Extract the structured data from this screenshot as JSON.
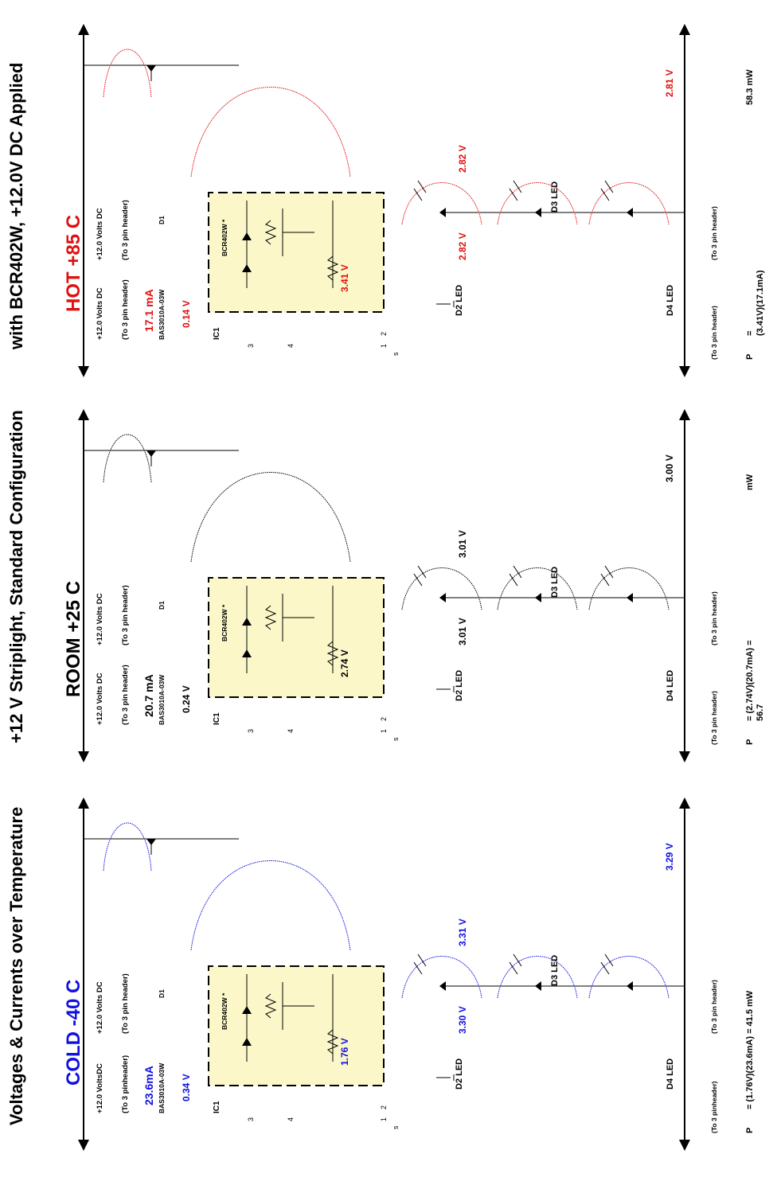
{
  "title": {
    "left": "Voltages & Currents over Temperature",
    "mid": "+12 V Striplight, Standard Configuration",
    "right": "with BCR402W, +12.0V DC Applied"
  },
  "colors": {
    "cold": "#1010e0",
    "room": "#000000",
    "hot": "#e01010",
    "ic_fill": "#fbf7c8"
  },
  "panels": [
    {
      "id": "cold",
      "temp_label": "COLD -40 C",
      "supply_a": "+12.0 VoltsDC",
      "header_a": "(To 3 pinheader)",
      "supply_b": "+12.0 Volts DC",
      "header_b": "(To 3 pin header)",
      "current": "23.6mA",
      "diode_part": "BAS3010A-03W",
      "diode_ref": "D1",
      "diode_v": "0.34 V",
      "ic_ref": "IC1",
      "ic_part": "BCR402W *",
      "pin3": "3",
      "pin4": "4",
      "pin1": "1",
      "pin2": "2",
      "pin_s": "s",
      "ic_v": "1.76 V",
      "d2": "D2 LED",
      "d2_v": "3.30 V",
      "d3": "D3  LED",
      "d3_v": "3.31 V",
      "d4": "D4  LED",
      "end_v": "3.29 V",
      "gnd_header_a": "(To 3 pinheader)",
      "gnd_header_b": "(To 3 pin header)",
      "p_label": "P",
      "p_eq": "= (1.76V)(23.6mA) = 41.5 mW",
      "p_eq2": ""
    },
    {
      "id": "room",
      "temp_label": "ROOM +25 C",
      "supply_a": "+12.0 Volts DC",
      "header_a": "(To 3 pin header)",
      "supply_b": "+12.0 Volts DC",
      "header_b": "(To 3 pin header)",
      "current": "20.7 mA",
      "diode_part": "BAS3010A-03W",
      "diode_ref": "D1",
      "diode_v": "0.24 V",
      "ic_ref": "IC1",
      "ic_part": "BCR402W *",
      "pin3": "3",
      "pin4": "4",
      "pin1": "1",
      "pin2": "2",
      "pin_s": "s",
      "ic_v": "2.74 V",
      "d2": "D2 LED",
      "d2_v": "3.01 V",
      "d3": "D3  LED",
      "d3_v": "3.01 V",
      "d4": "D4  LED",
      "end_v": "3.00 V",
      "gnd_header_a": "(To 3 pin header)",
      "gnd_header_b": "(To 3 pin header)",
      "p_label": "P",
      "p_eq": "= (2.74V)(20.7mA) =",
      "p_eq2": "56.7",
      "p_unit": "mW"
    },
    {
      "id": "hot",
      "temp_label": "HOT +85 C",
      "supply_a": "+12.0 Volts DC",
      "header_a": "(To 3 pin header)",
      "supply_b": "+12.0 Volts DC",
      "header_b": "(To 3 pin header)",
      "current": "17.1 mA",
      "diode_part": "BAS3010A-03W",
      "diode_ref": "D1",
      "diode_v": "0.14 V",
      "ic_ref": "IC1",
      "ic_part": "BCR402W *",
      "pin3": "3",
      "pin4": "4",
      "pin1": "1",
      "pin2": "2",
      "pin_s": "s",
      "ic_v": "3.41 V",
      "d2": "D2 LED",
      "d2_v": "2.82 V",
      "d3": "D3  LED",
      "d3_v": "2.82 V",
      "d4": "D4  LED",
      "end_v": "2.81 V",
      "gnd_header_a": "(To 3 pin header)",
      "gnd_header_b": "(To 3 pin header)",
      "p_label": "P",
      "p_eq": "=",
      "p_eq2": "(3.41V)(17.1mA)",
      "p_unit": "58.3 mW"
    }
  ]
}
